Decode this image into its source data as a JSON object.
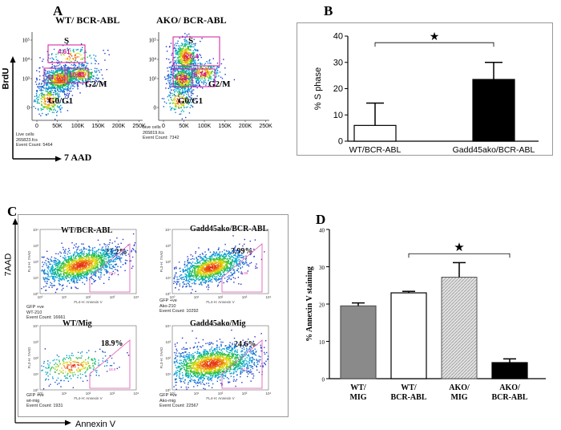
{
  "panel_labels": {
    "a": "A",
    "b": "B",
    "c": "C",
    "d": "D"
  },
  "panel_a": {
    "y_axis_label": "BrdU",
    "x_axis_label": "7 AAD",
    "y_ticks": [
      "10⁵",
      "10⁴",
      "10³",
      "0"
    ],
    "x_ticks": [
      "0",
      "50K",
      "100K",
      "150K",
      "200K",
      "250K"
    ],
    "plots": [
      {
        "title": "WT/ BCR-ABL",
        "s_label": "S",
        "g0g1_label": "G0/G1",
        "g2m_label": "G2/M",
        "s_pct": "4.61",
        "g1_pct": "44.7",
        "g2m_pct": "10.81",
        "footer": [
          "Live cells",
          "265823.fcs",
          "Event Count: 5464"
        ]
      },
      {
        "title": "AKO/ BCR-ABL",
        "s_label": "S",
        "g0g1_label": "G0/G1",
        "g2m_label": "G2/M",
        "s_pct": "26.4",
        "g1_pct": "47.8",
        "g2m_pct": "6.74",
        "footer": [
          "Live cells",
          "265819.fcs",
          "Event Count: 7342"
        ]
      }
    ]
  },
  "panel_c": {
    "y_axis_label": "7AAD",
    "x_axis_label": "Annexin V",
    "plots": [
      {
        "title": "WT/BCR-ABL",
        "pct": "23.2%",
        "gate": "23.2",
        "x_label": "FL4-H: Annexin V",
        "y_label": "FL3-H: 7AAD",
        "footer": [
          "GFP +ve",
          "WT-210",
          "Event Count: 16661"
        ]
      },
      {
        "title": "Gadd45ako/BCR-ABL",
        "pct": "3.99%",
        "gate": "3.99",
        "x_label": "FL4-H: Annexin V",
        "y_label": "FL3-H: 7AAD",
        "footer": [
          "GFP +ve",
          "Ako-210",
          "Event Count: 10292"
        ]
      },
      {
        "title": "WT/Mig",
        "pct": "18.9%",
        "gate": "18.9",
        "x_label": "FL4-H: Annexin V",
        "y_label": "FL3-H: 7AAD",
        "footer": [
          "GFP +ve",
          "wt-mig",
          "Event Count: 1931"
        ]
      },
      {
        "title": "Gadd45ako/Mig",
        "pct": "24.6%",
        "gate": "24.6",
        "x_label": "FL4-H: Annexin V",
        "y_label": "FL3-H: 7AAD",
        "footer": [
          "GFP +ve",
          "Ako-mig",
          "Event Count: 22567"
        ]
      }
    ]
  },
  "chart_data": [
    {
      "type": "bar",
      "panel": "B",
      "categories": [
        "WT/BCR-ABL",
        "Gadd45ako/BCR-ABL"
      ],
      "values": [
        6,
        23.5
      ],
      "errors": [
        8.5,
        6.5
      ],
      "ylabel": "% S phase",
      "ylim": [
        0,
        40
      ],
      "yticks": [
        "0",
        "10",
        "20",
        "30",
        "40"
      ],
      "significance": "★",
      "colors": [
        "#ffffff",
        "#000000"
      ]
    },
    {
      "type": "bar",
      "panel": "D",
      "categories": [
        [
          "WT/",
          "MIG"
        ],
        [
          "WT/",
          "BCR-ABL"
        ],
        [
          "AKO/",
          "MIG"
        ],
        [
          "AKO/",
          "BCR-ABL"
        ]
      ],
      "values": [
        19.5,
        23,
        27.2,
        4.3
      ],
      "errors": [
        0.8,
        0.4,
        3.9,
        1.0
      ],
      "ylabel": "% Annexin V staining",
      "ylim": [
        0,
        40
      ],
      "yticks": [
        "0",
        "10",
        "20",
        "30",
        "40"
      ],
      "significance": "★",
      "colors": [
        "#8a8a8a",
        "#ffffff",
        "#d8d8d8",
        "#000000"
      ]
    }
  ]
}
